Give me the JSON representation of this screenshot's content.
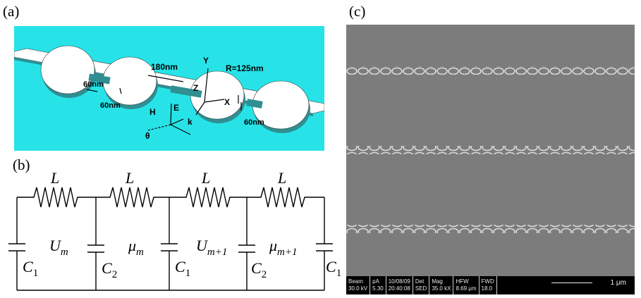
{
  "panels": {
    "a": {
      "label": "(a)",
      "annotations": {
        "gap": "180nm",
        "radius": "R=125nm",
        "width_left": "60nm",
        "thickness_left": "60nm",
        "width_right": "60nm",
        "axis_y": "Y",
        "axis_z": "Z",
        "axis_x": "X",
        "field_h": "H",
        "field_e": "E",
        "field_k": "k",
        "angle": "θ"
      },
      "colors": {
        "background": "#27e3e8",
        "structure": "#2f8f92",
        "holes": "#ffffff"
      }
    },
    "b": {
      "label": "(b)",
      "inductor": "L",
      "nodes": [
        "U",
        "μ",
        "U",
        "μ"
      ],
      "node_subs": [
        "m",
        "m",
        "m+1",
        "m+1"
      ],
      "capacitors": [
        "C",
        "C",
        "C",
        "C",
        "C"
      ],
      "capacitor_subs": [
        "1",
        "2",
        "1",
        "2",
        "1"
      ]
    },
    "c": {
      "label": "(c)",
      "info_bar": {
        "headers": [
          "Beam",
          "pA",
          "10/08/09",
          "Det",
          "Mag",
          "HFW",
          "FWD"
        ],
        "values": [
          "30.0 kV",
          "5.30",
          "20:40:08",
          "SED",
          "35.0 kX",
          "8.69 μm",
          "18.0"
        ],
        "scale_label": "1 μm"
      }
    }
  }
}
